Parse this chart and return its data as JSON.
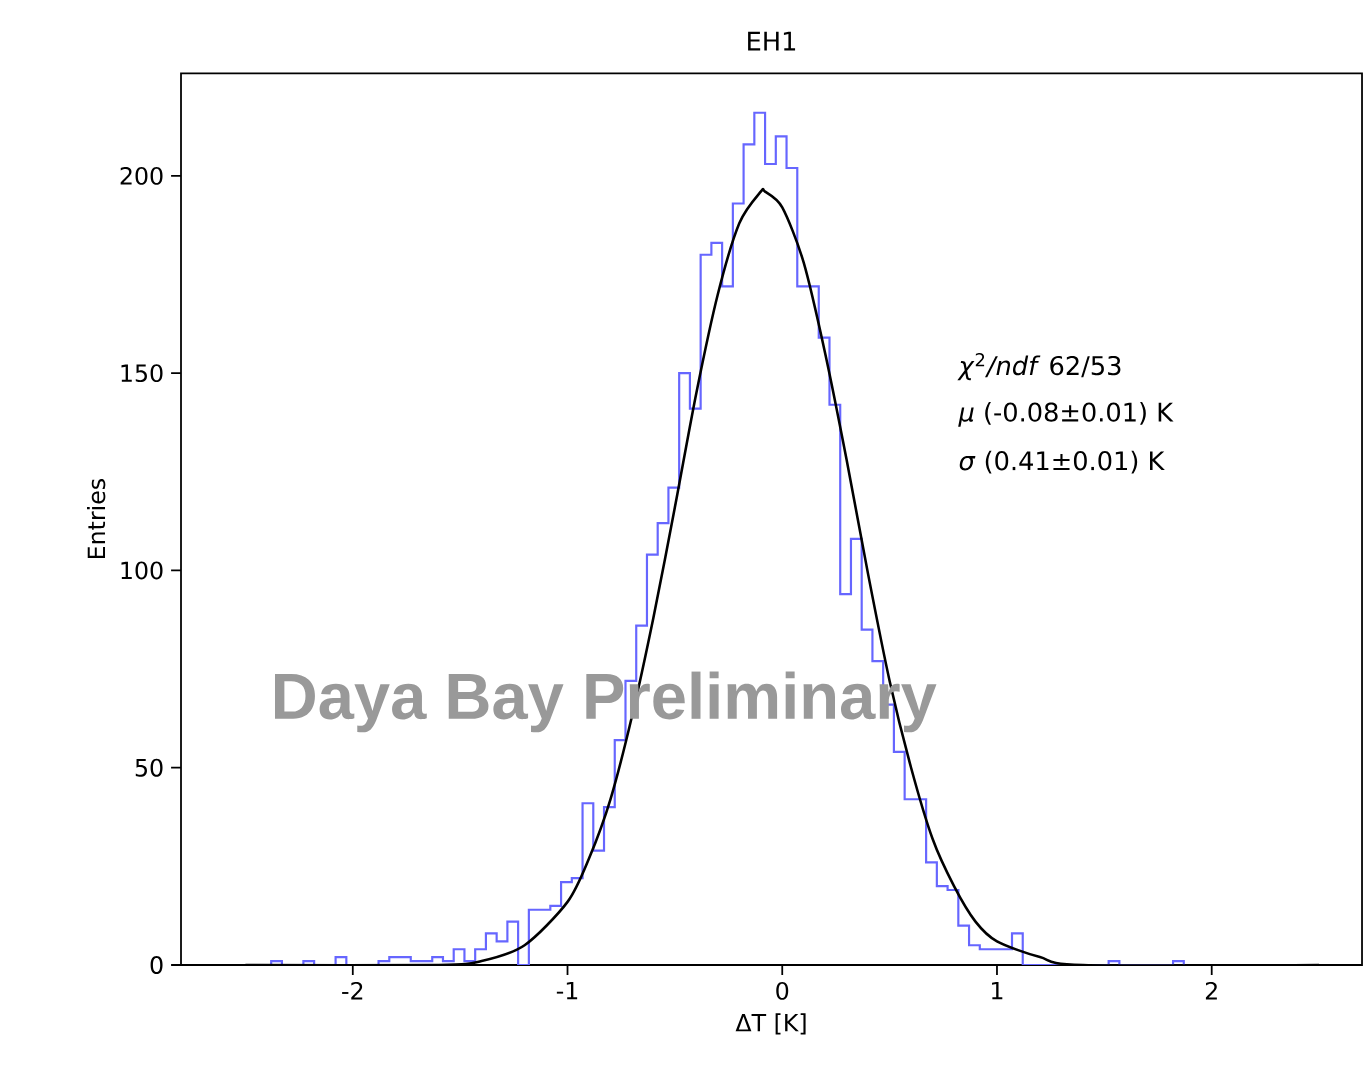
{
  "chart_data": {
    "type": "histogram",
    "title": "EH1",
    "xlabel": "ΔT [K]",
    "ylabel": "Entries",
    "color": "#6666ff",
    "bins": [
      -2.38,
      -2.33,
      -2.28,
      -2.23,
      -2.18,
      -2.13,
      -2.08,
      -2.03,
      -1.98,
      -1.93,
      -1.88,
      -1.83,
      -1.78,
      -1.73,
      -1.68,
      -1.63,
      -1.58,
      -1.53,
      -1.48,
      -1.43,
      -1.38,
      -1.33,
      -1.28,
      -1.23,
      -1.18,
      -1.13,
      -1.08,
      -1.03,
      -0.98,
      -0.93,
      -0.88,
      -0.83,
      -0.78,
      -0.73,
      -0.68,
      -0.63,
      -0.58,
      -0.53,
      -0.48,
      -0.43,
      -0.38,
      -0.33,
      -0.28,
      -0.23,
      -0.18,
      -0.13,
      -0.08,
      -0.03,
      0.02,
      0.07,
      0.12,
      0.17,
      0.22,
      0.27,
      0.32,
      0.37,
      0.42,
      0.47,
      0.52,
      0.57,
      0.62,
      0.67,
      0.72,
      0.77,
      0.82,
      0.87,
      0.92,
      0.97,
      1.02,
      1.07,
      1.12,
      1.17,
      1.22,
      1.27,
      1.32,
      1.37,
      1.42,
      1.47,
      1.52,
      1.57,
      1.62,
      1.67,
      1.72,
      1.77,
      1.82,
      1.87
    ],
    "values": [
      1,
      0,
      0,
      1,
      0,
      0,
      2,
      0,
      0,
      0,
      1,
      2,
      2,
      1,
      1,
      2,
      1,
      4,
      1,
      4,
      8,
      6,
      11,
      0,
      14,
      14,
      15,
      21,
      22,
      41,
      29,
      40,
      57,
      72,
      86,
      104,
      112,
      121,
      150,
      141,
      180,
      183,
      172,
      193,
      208,
      216,
      203,
      210,
      202,
      172,
      172,
      159,
      142,
      94,
      108,
      85,
      77,
      66,
      54,
      42,
      42,
      26,
      20,
      19,
      10,
      5,
      4,
      4,
      4,
      8,
      0,
      0,
      0,
      0,
      0,
      0,
      0,
      0,
      1,
      0,
      0,
      0,
      0,
      0,
      1
    ],
    "series": [
      {
        "type": "line",
        "color": "#000000",
        "x": [
          -2.5,
          -1.6,
          -1.4,
          -1.2,
          -1.0,
          -0.9,
          -0.8,
          -0.7,
          -0.6,
          -0.5,
          -0.4,
          -0.3,
          -0.2,
          -0.1,
          -0.08,
          0,
          0.1,
          0.2,
          0.3,
          0.4,
          0.5,
          0.6,
          0.7,
          0.8,
          0.9,
          1.0,
          1.2,
          1.4,
          2.5
        ],
        "values": [
          0,
          0,
          1,
          5,
          16,
          27,
          42,
          63,
          88,
          116,
          145,
          170,
          188,
          196,
          196,
          192,
          178,
          155,
          128,
          99,
          72,
          50,
          32,
          20,
          11,
          6,
          2,
          0,
          0
        ]
      }
    ],
    "xlim": [
      -2.8,
      2.7
    ],
    "ylim": [
      0,
      226
    ],
    "xticks": [
      -2,
      -1,
      0,
      1,
      2
    ],
    "yticks": [
      0,
      50,
      100,
      150,
      200
    ],
    "annotations": [
      "*χ*$^{2}$*/ndf*  62/53",
      "*μ*  (-0.08±0.01) K",
      "*σ*  (0.41±0.01) K",
      "Daya Bay Preliminary"
    ]
  }
}
